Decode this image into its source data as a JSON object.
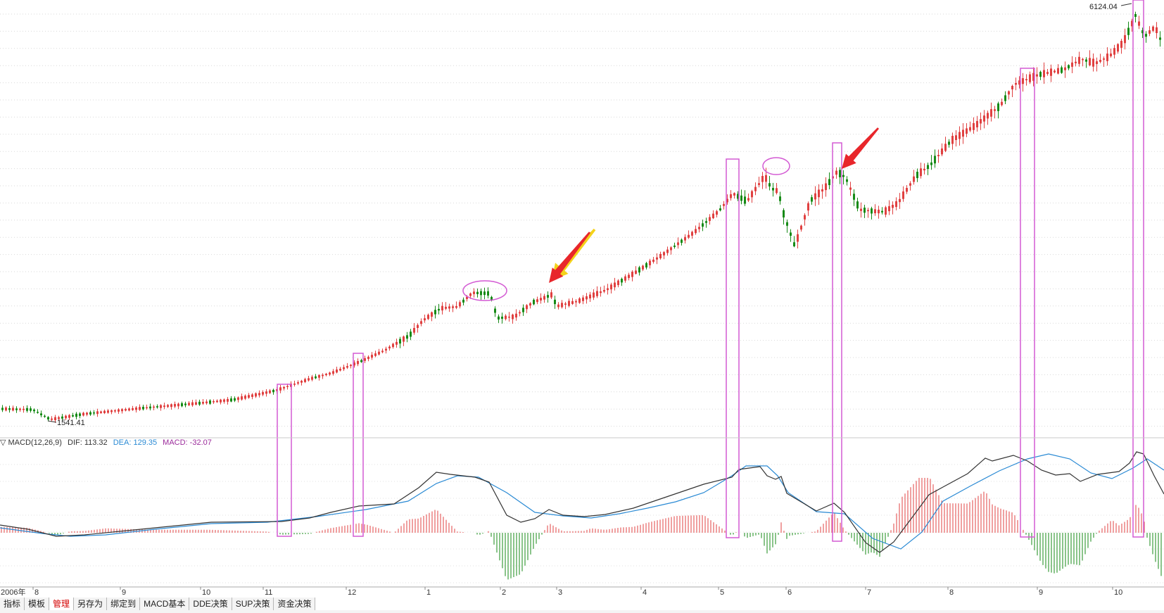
{
  "main": {
    "high_label": "6124.04",
    "low_label": "1541.41"
  },
  "indicator": {
    "header_prefix": "▽ MACD(12,26,9)",
    "dif_label": "DIF: 113.32",
    "dea_label": "DEA: 129.35",
    "macd_label": "MACD: -32.07",
    "colors": {
      "dif": "#333333",
      "dea": "#2a8ad4",
      "macd": "#9b2b9b",
      "bar_up": "#e04040",
      "bar_down": "#2e9a2e"
    }
  },
  "time_axis": {
    "year_label": "2006年",
    "months": [
      "8",
      "9",
      "10",
      "11",
      "12",
      "1",
      "2",
      "3",
      "4",
      "5",
      "6",
      "7",
      "8",
      "9",
      "10"
    ]
  },
  "toolbar": {
    "tabs": [
      {
        "label": "指标",
        "active": false
      },
      {
        "label": "模板",
        "active": false
      },
      {
        "label": "管理",
        "active": true
      },
      {
        "label": "另存为",
        "active": false
      },
      {
        "label": "绑定到",
        "active": false
      },
      {
        "label": "MACD基本",
        "active": false
      },
      {
        "label": "DDE决策",
        "active": false
      },
      {
        "label": "SUP决策",
        "active": false
      },
      {
        "label": "资金决策",
        "active": false
      }
    ]
  },
  "colors": {
    "up": "#e04040",
    "down": "#168a16",
    "annotation": "#d35ad3",
    "arrow_red": "#e8262b",
    "arrow_yellow": "#f4d21a"
  }
}
